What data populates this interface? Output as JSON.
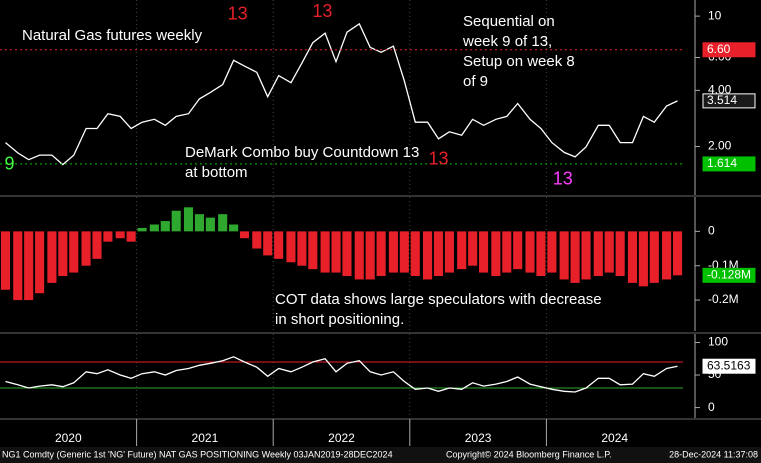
{
  "chart_data": [
    {
      "type": "line",
      "log_scale": true,
      "color": "#ffffff",
      "annotations": [
        [
          "Natural Gas futures weekly"
        ],
        [
          "Sequential on",
          "week 9 of 13,",
          "Setup on week 8",
          "of 9"
        ],
        [
          "DeMark Combo buy Countdown 13",
          "at bottom"
        ]
      ],
      "xlim": [
        2020,
        2025
      ],
      "x": [
        2020.04,
        2020.13,
        2020.21,
        2020.29,
        2020.38,
        2020.46,
        2020.54,
        2020.63,
        2020.71,
        2020.79,
        2020.88,
        2020.96,
        2021.04,
        2021.13,
        2021.21,
        2021.29,
        2021.38,
        2021.46,
        2021.54,
        2021.63,
        2021.71,
        2021.79,
        2021.88,
        2021.96,
        2022.04,
        2022.13,
        2022.21,
        2022.29,
        2022.38,
        2022.46,
        2022.54,
        2022.63,
        2022.71,
        2022.79,
        2022.88,
        2022.96,
        2023.04,
        2023.13,
        2023.21,
        2023.29,
        2023.38,
        2023.46,
        2023.54,
        2023.63,
        2023.71,
        2023.79,
        2023.88,
        2023.96,
        2024.04,
        2024.13,
        2024.21,
        2024.29,
        2024.38,
        2024.46,
        2024.54,
        2024.63,
        2024.71,
        2024.79,
        2024.88,
        2024.96
      ],
      "values": [
        2.1,
        1.85,
        1.7,
        1.8,
        1.8,
        1.6,
        1.8,
        2.5,
        2.5,
        3.0,
        2.9,
        2.5,
        2.7,
        2.8,
        2.6,
        2.9,
        3.0,
        3.6,
        3.9,
        4.3,
        5.8,
        5.4,
        5.0,
        3.7,
        4.8,
        4.4,
        5.6,
        7.2,
        8.1,
        5.7,
        8.2,
        9.1,
        6.8,
        6.4,
        6.9,
        4.5,
        2.7,
        2.7,
        2.2,
        2.4,
        2.3,
        2.8,
        2.6,
        2.8,
        2.9,
        3.4,
        2.8,
        2.5,
        2.1,
        1.86,
        1.76,
        1.99,
        2.6,
        2.6,
        2.1,
        2.1,
        2.9,
        2.7,
        3.3,
        3.514
      ],
      "ylim": [
        1.1,
        12.2
      ],
      "yticks": [
        10,
        {
          "value": 6,
          "label": "6.00"
        },
        {
          "value": 4,
          "label": "4.00"
        },
        {
          "value": 2,
          "label": "2.00"
        }
      ],
      "levels": [
        {
          "value": 6.6,
          "label": "6.60",
          "color": "#e8202a",
          "line": true
        },
        {
          "value": 3.514,
          "label": "3.514",
          "color": "#1a1a1a",
          "line": false
        },
        {
          "value": 1.614,
          "label": "1.614",
          "color": "#00c000",
          "line": true
        }
      ],
      "markers": [
        {
          "label": "13",
          "x": 2021.74,
          "y": 10.2,
          "color": "#e8202a"
        },
        {
          "label": "13",
          "x": 2022.36,
          "y": 10.5,
          "color": "#e8202a"
        },
        {
          "label": "13",
          "x": 2023.21,
          "y": 1.7,
          "color": "#e8202a"
        },
        {
          "label": "13",
          "x": 2024.12,
          "y": 1.33,
          "color": "#ff40ff"
        },
        {
          "label": "9",
          "x": 2020.07,
          "y": 1.6,
          "color": "#40ff40"
        }
      ]
    },
    {
      "type": "bar",
      "positive_color": "#2ea82e",
      "negative_color": "#e8202a",
      "annotations": [
        [
          "COT data shows large speculators with decrease",
          "in short positioning."
        ]
      ],
      "xlim": [
        2020,
        2025
      ],
      "x": [
        2020.04,
        2020.13,
        2020.21,
        2020.29,
        2020.38,
        2020.46,
        2020.54,
        2020.63,
        2020.71,
        2020.79,
        2020.88,
        2020.96,
        2021.04,
        2021.13,
        2021.21,
        2021.29,
        2021.38,
        2021.46,
        2021.54,
        2021.63,
        2021.71,
        2021.79,
        2021.88,
        2021.96,
        2022.04,
        2022.13,
        2022.21,
        2022.29,
        2022.38,
        2022.46,
        2022.54,
        2022.63,
        2022.71,
        2022.79,
        2022.88,
        2022.96,
        2023.04,
        2023.13,
        2023.21,
        2023.29,
        2023.38,
        2023.46,
        2023.54,
        2023.63,
        2023.71,
        2023.79,
        2023.88,
        2023.96,
        2024.04,
        2024.13,
        2024.21,
        2024.29,
        2024.38,
        2024.46,
        2024.54,
        2024.63,
        2024.71,
        2024.79,
        2024.88,
        2024.96
      ],
      "values": [
        -0.17,
        -0.2,
        -0.2,
        -0.18,
        -0.15,
        -0.13,
        -0.12,
        -0.1,
        -0.08,
        -0.03,
        -0.02,
        -0.03,
        0.01,
        0.02,
        0.03,
        0.06,
        0.07,
        0.05,
        0.04,
        0.05,
        0.02,
        -0.02,
        -0.05,
        -0.07,
        -0.08,
        -0.09,
        -0.1,
        -0.11,
        -0.12,
        -0.12,
        -0.13,
        -0.14,
        -0.14,
        -0.13,
        -0.12,
        -0.12,
        -0.13,
        -0.14,
        -0.13,
        -0.12,
        -0.11,
        -0.1,
        -0.12,
        -0.13,
        -0.12,
        -0.11,
        -0.12,
        -0.13,
        -0.12,
        -0.14,
        -0.15,
        -0.14,
        -0.13,
        -0.12,
        -0.13,
        -0.15,
        -0.16,
        -0.15,
        -0.14,
        -0.128
      ],
      "ylim": [
        -0.29,
        0.1
      ],
      "yticks": [
        0,
        {
          "value": -0.1,
          "label": "-0.1M"
        },
        {
          "value": -0.2,
          "label": "-0.2M"
        }
      ],
      "levels": [
        {
          "value": -0.128,
          "label": "-0.128M",
          "color": "#00c000",
          "line": false
        }
      ]
    },
    {
      "type": "line",
      "color": "#ffffff",
      "xlim": [
        2020,
        2025
      ],
      "x": [
        2020.04,
        2020.13,
        2020.21,
        2020.29,
        2020.38,
        2020.46,
        2020.54,
        2020.63,
        2020.71,
        2020.79,
        2020.88,
        2020.96,
        2021.04,
        2021.13,
        2021.21,
        2021.29,
        2021.38,
        2021.46,
        2021.54,
        2021.63,
        2021.71,
        2021.79,
        2021.88,
        2021.96,
        2022.04,
        2022.13,
        2022.21,
        2022.29,
        2022.38,
        2022.46,
        2022.54,
        2022.63,
        2022.71,
        2022.79,
        2022.88,
        2022.96,
        2023.04,
        2023.13,
        2023.21,
        2023.29,
        2023.38,
        2023.46,
        2023.54,
        2023.63,
        2023.71,
        2023.79,
        2023.88,
        2023.96,
        2024.04,
        2024.13,
        2024.21,
        2024.29,
        2024.38,
        2024.46,
        2024.54,
        2024.63,
        2024.71,
        2024.79,
        2024.88,
        2024.96
      ],
      "values": [
        40,
        35,
        30,
        33,
        35,
        32,
        38,
        55,
        52,
        58,
        50,
        45,
        52,
        55,
        50,
        57,
        60,
        65,
        68,
        72,
        78,
        70,
        62,
        48,
        60,
        55,
        62,
        70,
        75,
        55,
        68,
        72,
        55,
        50,
        55,
        40,
        28,
        30,
        25,
        30,
        28,
        38,
        33,
        36,
        40,
        47,
        36,
        32,
        28,
        25,
        24,
        30,
        45,
        45,
        35,
        36,
        52,
        48,
        60,
        63.5163
      ],
      "ylim": [
        -16,
        113
      ],
      "yticks": [
        100,
        50,
        0
      ],
      "bands": [
        {
          "value": 70,
          "color": "#e8202a"
        },
        {
          "value": 30,
          "color": "#2ea82e"
        }
      ],
      "levels": [
        {
          "value": 63.5163,
          "label": "63.5163",
          "color": "#ffffff",
          "line": false
        }
      ],
      "xticks": [
        {
          "value": 2020.5,
          "label": "2020"
        },
        {
          "value": 2021.5,
          "label": "2021"
        },
        {
          "value": 2022.5,
          "label": "2022"
        },
        {
          "value": 2023.5,
          "label": "2023"
        },
        {
          "value": 2024.5,
          "label": "2024"
        }
      ],
      "year_lines": [
        2021,
        2022,
        2023,
        2024
      ]
    }
  ],
  "footer": {
    "left": "NG1 Comdty (Generic 1st 'NG' Future) NAT GAS POSITIONING  Weekly 03JAN2019-28DEC2024",
    "center": "Copyright© 2024 Bloomberg Finance L.P.",
    "right": "28-Dec-2024 11:37:08"
  }
}
